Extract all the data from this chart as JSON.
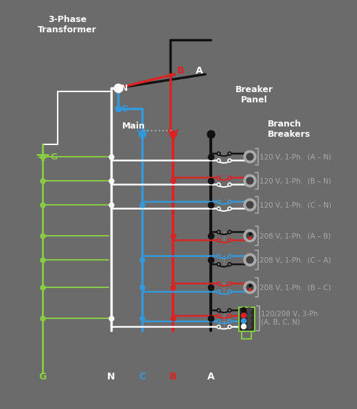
{
  "bg_color": "#6b6b6b",
  "colors": {
    "black": "#111111",
    "red": "#dd2222",
    "blue": "#3399dd",
    "white": "#ffffff",
    "green": "#88cc44",
    "gray": "#aaaaaa",
    "dark_gray": "#444444"
  },
  "branch_labels": [
    "120 V, 1-Ph.  (A – N)",
    "120 V, 1-Ph.  (B – N)",
    "120 V, 1-Ph.  (C – N)",
    "208 V, 1-Ph.  (A – B)",
    "208 V, 1-Ph.  (C – A)",
    "208 V, 1-Ph.  (B – C)",
    "120/208 V, 3-Ph\n(A, B, C, N)"
  ]
}
